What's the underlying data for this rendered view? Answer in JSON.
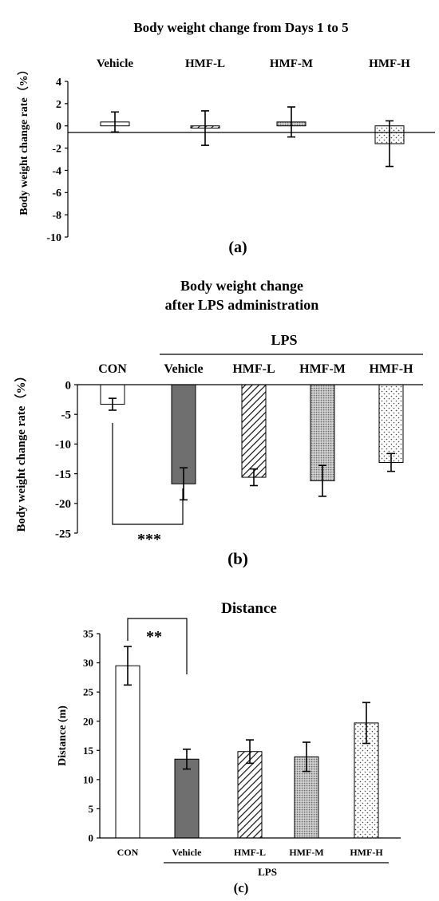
{
  "chart_data": [
    {
      "type": "bar",
      "title": "Body weight change from Days 1 to 5",
      "panel_label": "(a)",
      "ylabel": "Body weight change rate（%）",
      "categories": [
        "Vehicle",
        "HMF-L",
        "HMF-M",
        "HMF-H"
      ],
      "values": [
        0.35,
        -0.2,
        0.35,
        -1.6
      ],
      "errors": [
        0.9,
        1.55,
        1.35,
        2.05
      ],
      "patterns": [
        "white",
        "diagonal",
        "dense-dots",
        "sparse-dots"
      ],
      "ylim": [
        -10,
        4
      ],
      "yticks": [
        4,
        2,
        0,
        -2,
        -4,
        -6,
        -8,
        -10
      ],
      "tick_labels": [
        "4",
        "2",
        "0",
        "-2",
        "-4",
        "-6",
        "-8",
        "-10"
      ],
      "grid": false
    },
    {
      "type": "bar",
      "title_lines": [
        "Body weight change",
        "after LPS administration"
      ],
      "panel_label": "(b)",
      "ylabel": "Body weight change rate（%）",
      "group_label": "LPS",
      "categories": [
        "CON",
        "Vehicle",
        "HMF-L",
        "HMF-M",
        "HMF-H"
      ],
      "values": [
        -3.3,
        -16.7,
        -15.6,
        -16.2,
        -13.1
      ],
      "errors": [
        1.0,
        2.7,
        1.4,
        2.6,
        1.5
      ],
      "patterns": [
        "white",
        "dark-gray",
        "diagonal",
        "dense-dots",
        "sparse-dots"
      ],
      "ylim": [
        -25,
        0
      ],
      "yticks": [
        0,
        -5,
        -10,
        -15,
        -20,
        -25
      ],
      "tick_labels": [
        "0",
        "-5",
        "-10",
        "-15",
        "-20",
        "-25"
      ],
      "significance": {
        "label": "***",
        "between": [
          0,
          1
        ]
      },
      "grid": false
    },
    {
      "type": "bar",
      "title": "Distance",
      "panel_label": "(c)",
      "ylabel": "Distance (m)",
      "group_label": "LPS",
      "categories": [
        "CON",
        "Vehicle",
        "HMF-L",
        "HMF-M",
        "HMF-H"
      ],
      "values": [
        29.5,
        13.5,
        14.8,
        13.9,
        19.7
      ],
      "errors": [
        3.3,
        1.7,
        2.0,
        2.5,
        3.5
      ],
      "patterns": [
        "white",
        "dark-gray",
        "diagonal",
        "dense-dots",
        "sparse-dots"
      ],
      "ylim": [
        0,
        35
      ],
      "yticks": [
        0,
        5,
        10,
        15,
        20,
        25,
        30,
        35
      ],
      "tick_labels": [
        "0",
        "5",
        "10",
        "15",
        "20",
        "25",
        "30",
        "35"
      ],
      "significance": {
        "label": "**",
        "between": [
          0,
          1
        ]
      },
      "grid": false
    }
  ]
}
